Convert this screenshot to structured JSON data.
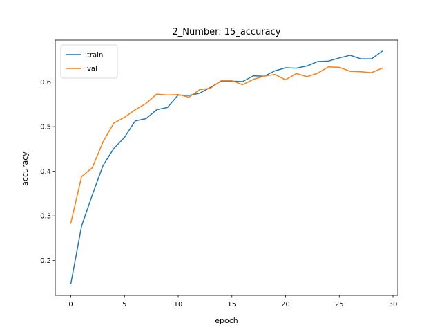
{
  "chart_data": {
    "type": "line",
    "title": "2_Number: 15_accuracy",
    "xlabel": "epoch",
    "ylabel": "accuracy",
    "xlim": [
      -1.45,
      30.45
    ],
    "ylim": [
      0.122,
      0.694
    ],
    "xticks": [
      0,
      5,
      10,
      15,
      20,
      25,
      30
    ],
    "yticks": [
      0.2,
      0.3,
      0.4,
      0.5,
      0.6
    ],
    "x": [
      0,
      1,
      2,
      3,
      4,
      5,
      6,
      7,
      8,
      9,
      10,
      11,
      12,
      13,
      14,
      15,
      16,
      17,
      18,
      19,
      20,
      21,
      22,
      23,
      24,
      25,
      26,
      27,
      28,
      29
    ],
    "legend_position": "upper-left",
    "series": [
      {
        "name": "train",
        "color": "#1f77b4",
        "values": [
          0.148,
          0.277,
          0.347,
          0.413,
          0.451,
          0.476,
          0.513,
          0.518,
          0.538,
          0.543,
          0.571,
          0.57,
          0.575,
          0.588,
          0.602,
          0.602,
          0.601,
          0.614,
          0.613,
          0.625,
          0.632,
          0.631,
          0.636,
          0.646,
          0.647,
          0.654,
          0.66,
          0.652,
          0.652,
          0.669
        ]
      },
      {
        "name": "val",
        "color": "#ff7f0e",
        "values": [
          0.284,
          0.388,
          0.408,
          0.466,
          0.508,
          0.521,
          0.538,
          0.552,
          0.573,
          0.571,
          0.572,
          0.566,
          0.583,
          0.586,
          0.603,
          0.603,
          0.594,
          0.606,
          0.613,
          0.617,
          0.605,
          0.619,
          0.612,
          0.62,
          0.634,
          0.633,
          0.624,
          0.623,
          0.621,
          0.631
        ]
      }
    ]
  }
}
